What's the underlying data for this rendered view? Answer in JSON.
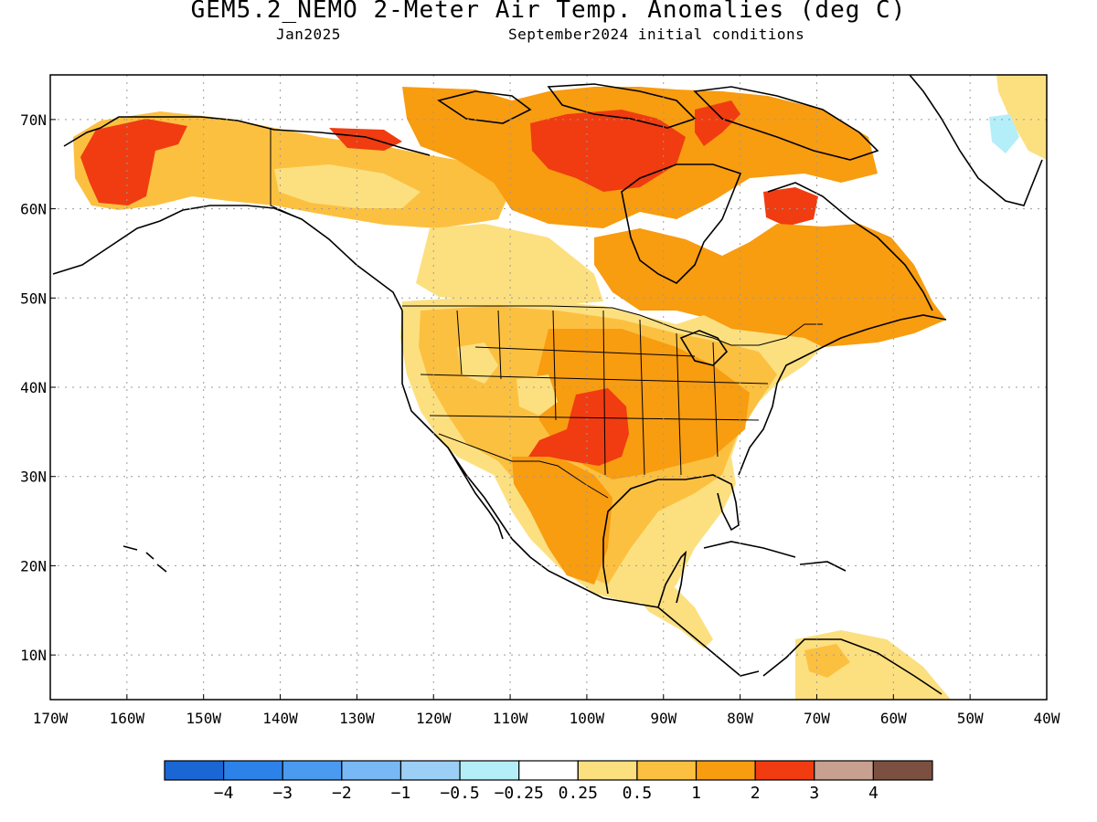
{
  "title": "GEM5.2_NEMO 2-Meter Air Temp. Anomalies (deg C)",
  "subtitle_left": "Jan2025",
  "subtitle_right": "September2024 initial conditions",
  "map": {
    "lon_range": [
      -170,
      -40
    ],
    "lat_range": [
      5,
      75
    ],
    "lon_ticks": [
      {
        "value": -170,
        "label": "170W"
      },
      {
        "value": -160,
        "label": "160W"
      },
      {
        "value": -150,
        "label": "150W"
      },
      {
        "value": -140,
        "label": "140W"
      },
      {
        "value": -130,
        "label": "130W"
      },
      {
        "value": -120,
        "label": "120W"
      },
      {
        "value": -110,
        "label": "110W"
      },
      {
        "value": -100,
        "label": "100W"
      },
      {
        "value": -90,
        "label": "90W"
      },
      {
        "value": -80,
        "label": "80W"
      },
      {
        "value": -70,
        "label": "70W"
      },
      {
        "value": -60,
        "label": "60W"
      },
      {
        "value": -50,
        "label": "50W"
      },
      {
        "value": -40,
        "label": "40W"
      }
    ],
    "lat_ticks": [
      {
        "value": 10,
        "label": "10N"
      },
      {
        "value": 20,
        "label": "20N"
      },
      {
        "value": 30,
        "label": "30N"
      },
      {
        "value": 40,
        "label": "40N"
      },
      {
        "value": 50,
        "label": "50N"
      },
      {
        "value": 60,
        "label": "60N"
      },
      {
        "value": 70,
        "label": "70N"
      }
    ],
    "gridlines": "dotted"
  },
  "legend": {
    "colors": [
      "#1a66d4",
      "#2c82e8",
      "#4a9af0",
      "#78b8f4",
      "#9ccff6",
      "#b4eef8",
      "#ffffff",
      "#fce080",
      "#fcc040",
      "#f89c10",
      "#f03c10",
      "#c8a090",
      "#7c5040"
    ],
    "labels": [
      "−4",
      "−3",
      "−2",
      "−1",
      "−0.5",
      "−0.25",
      "0.25",
      "0.5",
      "1",
      "2",
      "3",
      "4"
    ]
  }
}
